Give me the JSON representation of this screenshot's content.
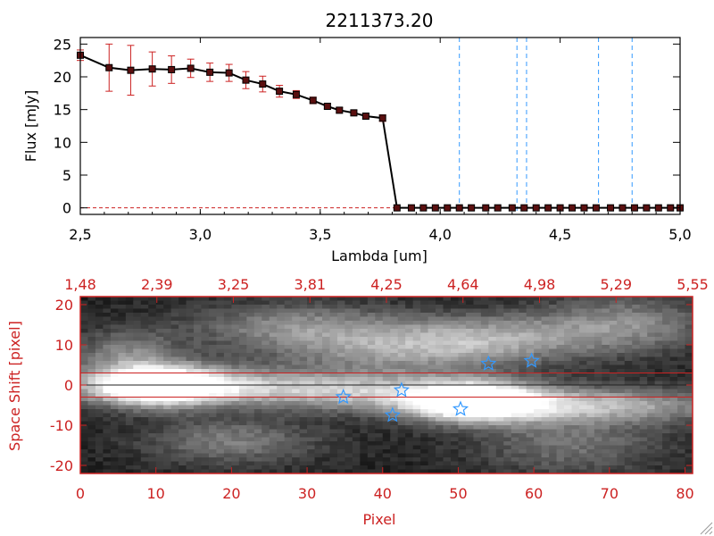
{
  "colors": {
    "accent": "#cc2222",
    "line": "#000000",
    "guide": "#3399ff",
    "marker": "#3399ff"
  },
  "chart_data": [
    {
      "type": "line",
      "title": "2211373.20",
      "xlabel": "Lambda [um]",
      "ylabel": "Flux [mJy]",
      "xlim": [
        2.5,
        5.0
      ],
      "ylim": [
        -1,
        26
      ],
      "xticks": [
        "2.5",
        "3.0",
        "3.5",
        "4.0",
        "4.5",
        "5.0"
      ],
      "yticks": [
        "0",
        "5",
        "10",
        "15",
        "20",
        "25"
      ],
      "x": [
        2.5,
        2.62,
        2.71,
        2.8,
        2.88,
        2.96,
        3.04,
        3.12,
        3.19,
        3.26,
        3.33,
        3.4,
        3.47,
        3.53,
        3.58,
        3.64,
        3.69,
        3.76,
        3.82,
        3.88,
        3.93,
        3.98,
        4.03,
        4.08,
        4.13,
        4.19,
        4.24,
        4.3,
        4.35,
        4.4,
        4.45,
        4.5,
        4.55,
        4.6,
        4.65,
        4.71,
        4.76,
        4.81,
        4.86,
        4.91,
        4.96,
        5.0
      ],
      "y": [
        23.3,
        21.4,
        21.0,
        21.2,
        21.1,
        21.3,
        20.7,
        20.6,
        19.5,
        18.9,
        17.8,
        17.3,
        16.4,
        15.5,
        14.9,
        14.5,
        14.0,
        13.7,
        0,
        0,
        0,
        0,
        0,
        0,
        0,
        0,
        0,
        0,
        0,
        0,
        0,
        0,
        0,
        0,
        0,
        0,
        0,
        0,
        0,
        0,
        0,
        0
      ],
      "err": [
        0.8,
        3.6,
        3.8,
        2.6,
        2.1,
        1.4,
        1.4,
        1.3,
        1.3,
        1.2,
        0.9,
        0.6,
        0.5,
        0.4,
        0.4,
        0.4,
        0.4,
        0.5,
        0,
        0,
        0,
        0,
        0,
        0,
        0,
        0,
        0,
        0,
        0,
        0,
        0,
        0,
        0,
        0,
        0,
        0,
        0,
        0,
        0,
        0,
        0,
        0
      ],
      "vlines": [
        4.08,
        4.32,
        4.36,
        4.66,
        4.8
      ],
      "grid": false
    },
    {
      "type": "heatmap",
      "xlabel": "Pixel",
      "ylabel": "Space Shift [pixel]",
      "xlim": [
        0,
        81
      ],
      "ylim": [
        -22,
        22
      ],
      "xticks": [
        "0",
        "10",
        "20",
        "30",
        "40",
        "50",
        "60",
        "70",
        "80"
      ],
      "yticks": [
        "-20",
        "-10",
        "0",
        "10",
        "20"
      ],
      "top_ticks": [
        "1.48",
        "2.39",
        "3.25",
        "3.81",
        "4.25",
        "4.64",
        "4.98",
        "5.29",
        "5.55"
      ],
      "hlines": [
        3,
        -3
      ],
      "markers": [
        {
          "x": 34.8,
          "y": -3.0
        },
        {
          "x": 41.3,
          "y": -7.5
        },
        {
          "x": 42.5,
          "y": -1.3
        },
        {
          "x": 50.3,
          "y": -6.0
        },
        {
          "x": 54.0,
          "y": 5.3
        },
        {
          "x": 59.7,
          "y": 6.0
        }
      ],
      "sources": [
        {
          "x": 10,
          "y": 0,
          "sx": 6,
          "sy": 3.5,
          "a": 1.0
        },
        {
          "x": 18,
          "y": -0.5,
          "sx": 14,
          "sy": 3.2,
          "a": 0.55
        },
        {
          "x": 38,
          "y": -2,
          "sx": 10,
          "sy": 3.2,
          "a": 0.4
        },
        {
          "x": 52,
          "y": -4,
          "sx": 6,
          "sy": 3.5,
          "a": 1.0
        },
        {
          "x": 66,
          "y": -5,
          "sx": 14,
          "sy": 3.2,
          "a": 0.6
        },
        {
          "x": 42,
          "y": 9,
          "sx": 12,
          "sy": 4.5,
          "a": 0.45
        },
        {
          "x": 55,
          "y": 12,
          "sx": 9,
          "sy": 4,
          "a": 0.35
        },
        {
          "x": 6,
          "y": 8,
          "sx": 5,
          "sy": 4,
          "a": 0.35
        },
        {
          "x": 28,
          "y": 15,
          "sx": 10,
          "sy": 4,
          "a": 0.35
        },
        {
          "x": 72,
          "y": 15,
          "sx": 8,
          "sy": 5,
          "a": 0.4
        },
        {
          "x": 20,
          "y": -14,
          "sx": 8,
          "sy": 4,
          "a": 0.35
        },
        {
          "x": 65,
          "y": -15,
          "sx": 9,
          "sy": 5,
          "a": 0.3
        }
      ]
    }
  ]
}
